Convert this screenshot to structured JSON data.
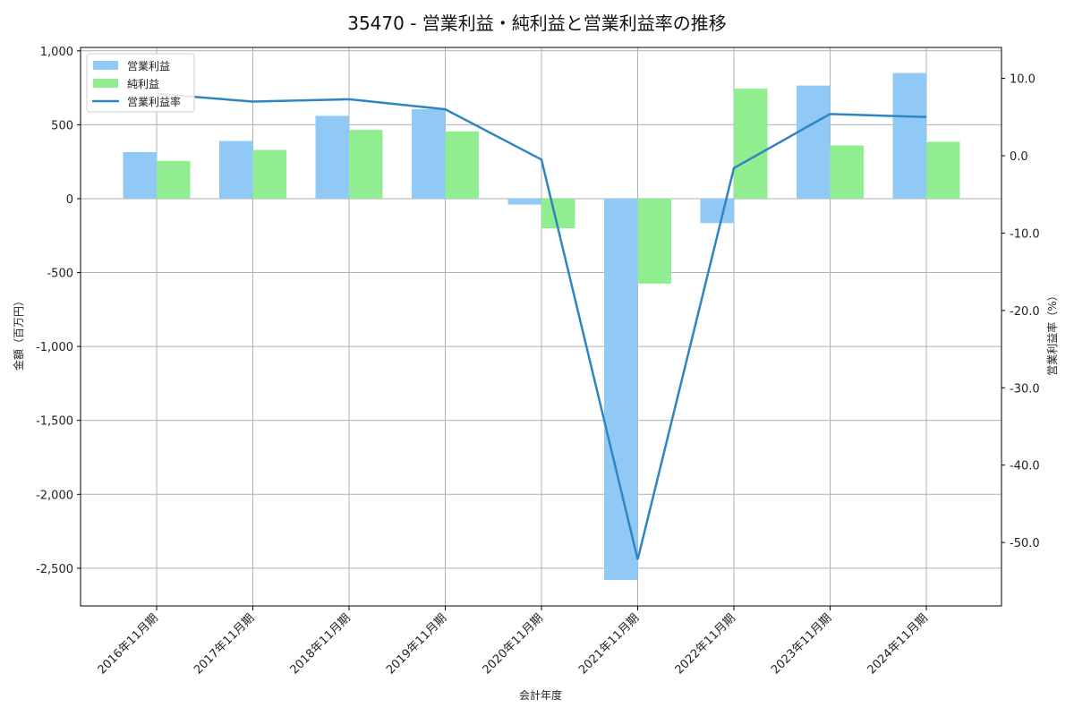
{
  "chart_data": {
    "type": "bar+line",
    "title": "35470 - 営業利益・純利益と営業利益率の推移",
    "xlabel": "会計年度",
    "ylabel": "金額（百万円）",
    "y2label": "営業利益率（%）",
    "categories": [
      "2016年11月期",
      "2017年11月期",
      "2018年11月期",
      "2019年11月期",
      "2020年11月期",
      "2021年11月期",
      "2022年11月期",
      "2023年11月期",
      "2024年11月期"
    ],
    "series": [
      {
        "name": "営業利益",
        "type": "bar",
        "axis": "left",
        "color": "#90c9f6",
        "values": [
          315,
          390,
          560,
          605,
          -40,
          -2580,
          -165,
          765,
          850
        ]
      },
      {
        "name": "純利益",
        "type": "bar",
        "axis": "left",
        "color": "#90ee90",
        "values": [
          255,
          330,
          465,
          455,
          -200,
          -575,
          745,
          360,
          385
        ]
      },
      {
        "name": "営業利益率",
        "type": "line",
        "axis": "right",
        "color": "#2e86c1",
        "values": [
          8.0,
          7.0,
          7.3,
          6.0,
          -0.5,
          -52.2,
          -1.6,
          5.4,
          5.0
        ]
      }
    ],
    "ylim": [
      -2755,
      1023
    ],
    "y2lim": [
      -58.2,
      14.0
    ],
    "yticks": [
      1000,
      500,
      0,
      -500,
      -1000,
      -1500,
      -2000,
      -2500
    ],
    "ytick_labels": [
      "1,000",
      "500",
      "0",
      "-500",
      "-1,000",
      "-1,500",
      "-2,000",
      "-2,500"
    ],
    "y2ticks": [
      10,
      0,
      -10,
      -20,
      -30,
      -40,
      -50
    ],
    "y2tick_labels": [
      "10.0",
      "0.0",
      "-10.0",
      "-20.0",
      "-30.0",
      "-40.0",
      "-50.0"
    ],
    "grid": true,
    "legend_position": "upper left"
  }
}
